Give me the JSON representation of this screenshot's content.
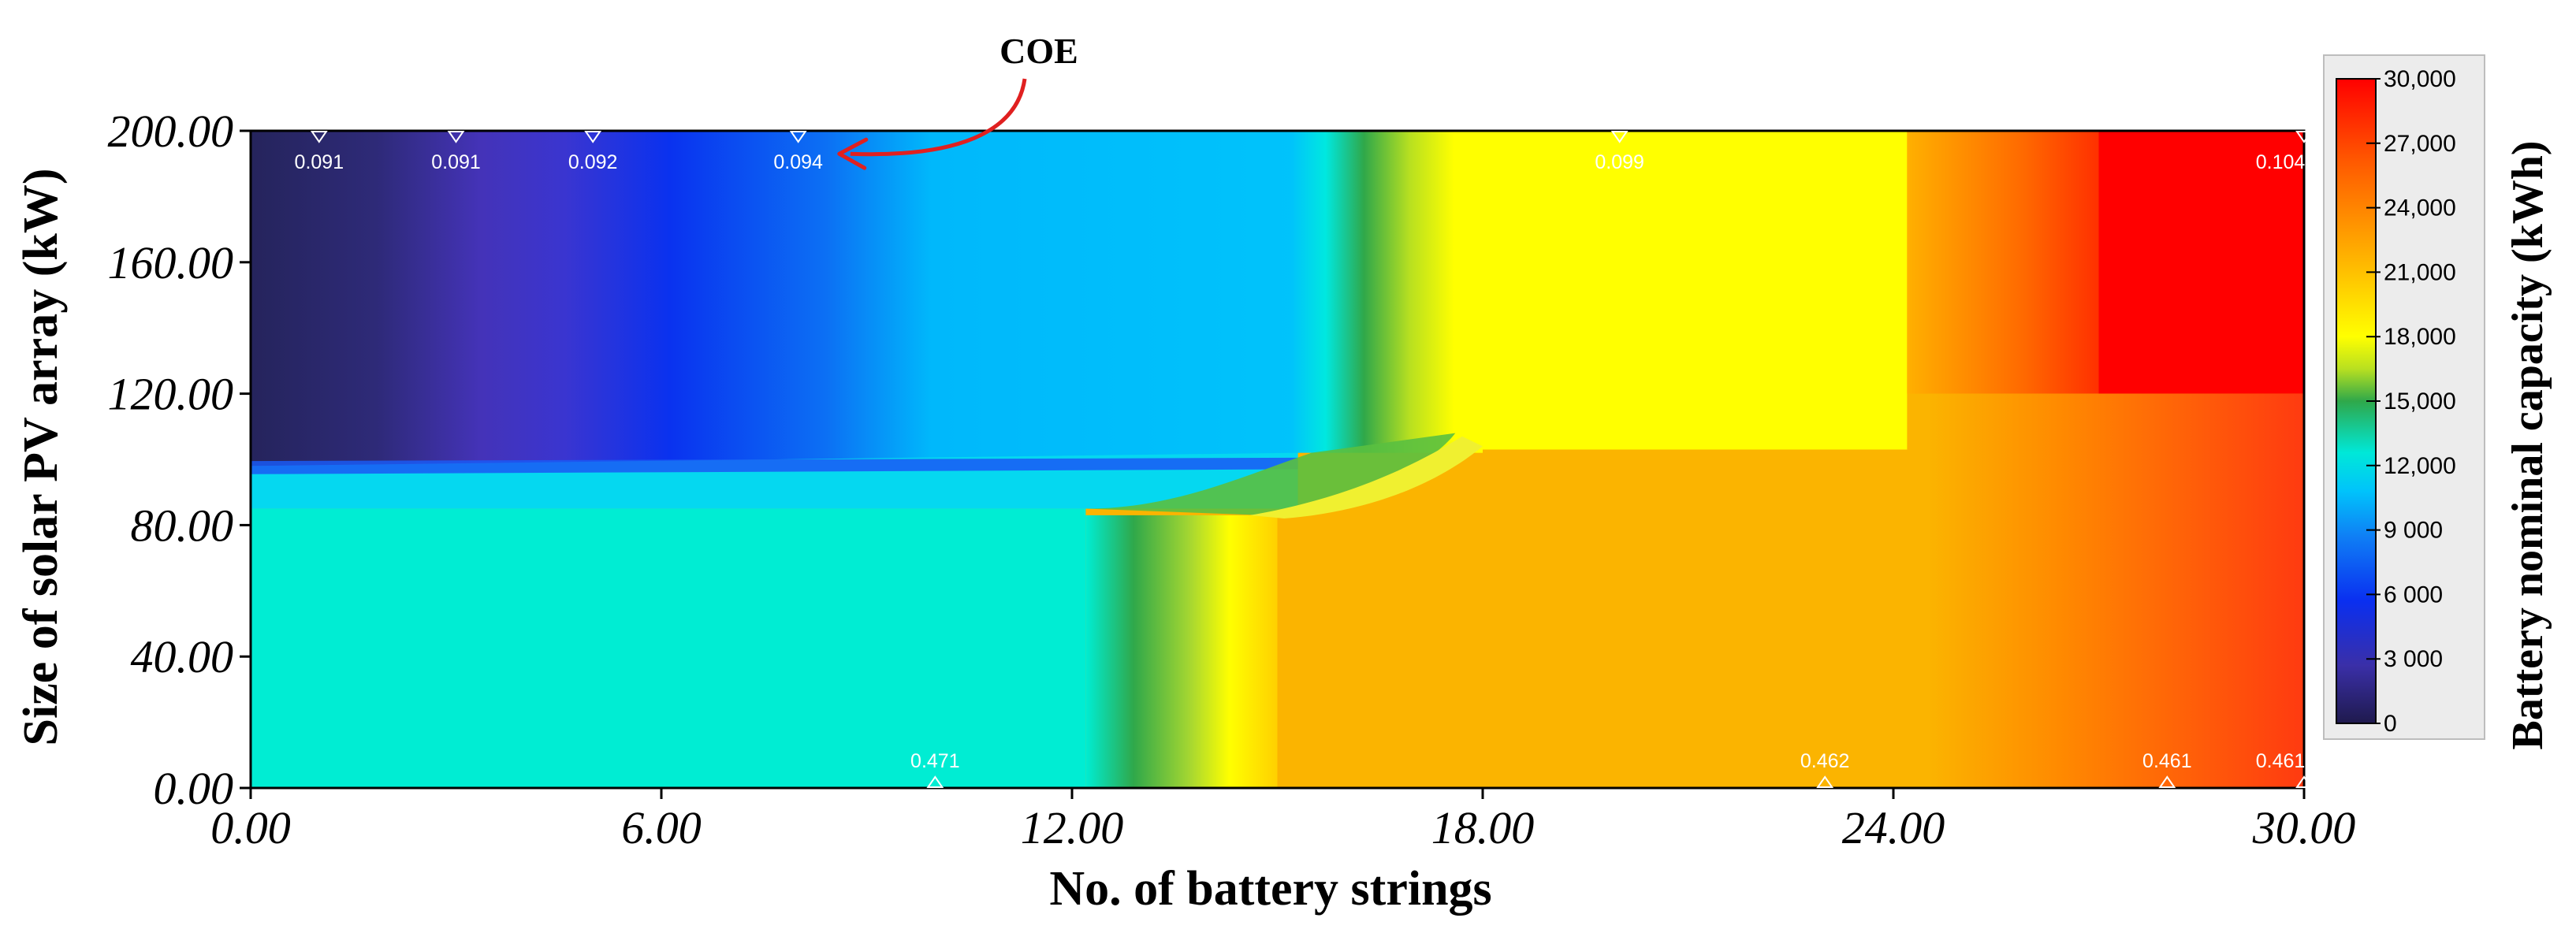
{
  "chart_data": {
    "type": "heatmap",
    "xlabel": "No. of battery strings",
    "ylabel": "Size of solar PV array (kW)",
    "xlim": [
      0,
      30
    ],
    "ylim": [
      0,
      200
    ],
    "x_ticks": [
      "0.00",
      "6.00",
      "12.00",
      "18.00",
      "24.00",
      "30.00"
    ],
    "y_ticks": [
      "0.00",
      "40.00",
      "80.00",
      "120.00",
      "160.00",
      "200.00"
    ],
    "colorbar": {
      "title": "Battery nominal capacity (kWh)",
      "range": [
        0,
        30000
      ],
      "ticks": [
        "0",
        "3 000",
        "6 000",
        "9 000",
        "12,000",
        "15,000",
        "18,000",
        "21,000",
        "24,000",
        "27,000",
        "30,000"
      ],
      "colors": [
        "#1f1a4d",
        "#3a2fa8",
        "#0a2ff0",
        "#0f7ff5",
        "#00c3fb",
        "#00e8d8",
        "#2fa84a",
        "#b8e020",
        "#ffff00",
        "#ffb400",
        "#ff5a00",
        "#ff0000"
      ]
    },
    "regions": [
      {
        "x_range": [
          0,
          1.8
        ],
        "y_range": [
          98,
          200
        ],
        "value": 1500,
        "color": "#26265e"
      },
      {
        "x_range": [
          1.8,
          3.5
        ],
        "y_range": [
          98,
          200
        ],
        "value": 3000,
        "color": "#4535b8"
      },
      {
        "x_range": [
          3.5,
          5.2
        ],
        "y_range": [
          98,
          200
        ],
        "value": 4500,
        "color": "#2a2aec"
      },
      {
        "x_range": [
          5.2,
          8.5
        ],
        "y_range": [
          98,
          200
        ],
        "value": 6000,
        "color": "#0a3ef2"
      },
      {
        "x_range": [
          8.5,
          15.2
        ],
        "y_range": [
          98,
          200
        ],
        "value": 9000,
        "color": "#00c3fb"
      },
      {
        "x_range": [
          0,
          12.2
        ],
        "y_range": [
          0,
          85
        ],
        "value": 11500,
        "color": "#00edd3"
      },
      {
        "x_range": [
          13,
          14.5
        ],
        "y_range": [
          0,
          85
        ],
        "value": 17500,
        "color": "#ffff00"
      },
      {
        "x_range": [
          14.5,
          27
        ],
        "y_range": [
          0,
          120
        ],
        "value": 22000,
        "color": "#fbb400"
      },
      {
        "x_range": [
          17.8,
          24.2
        ],
        "y_range": [
          100,
          200
        ],
        "value": 18000,
        "color": "#ffff00"
      },
      {
        "x_range": [
          27,
          30
        ],
        "y_range": [
          0,
          120
        ],
        "value": 26500,
        "color": "#ff5a10"
      },
      {
        "x_range": [
          27,
          30
        ],
        "y_range": [
          120,
          200
        ],
        "value": 30000,
        "color": "#ff0000"
      }
    ],
    "contour_labels": [
      {
        "x": 1.0,
        "y": 200,
        "label": "0.091"
      },
      {
        "x": 3.0,
        "y": 200,
        "label": "0.091"
      },
      {
        "x": 5.0,
        "y": 200,
        "label": "0.092"
      },
      {
        "x": 8.0,
        "y": 200,
        "label": "0.094"
      },
      {
        "x": 20.0,
        "y": 200,
        "label": "0.099"
      },
      {
        "x": 30.0,
        "y": 200,
        "label": "0.104"
      },
      {
        "x": 10.0,
        "y": 0,
        "label": "0.471"
      },
      {
        "x": 23.0,
        "y": 0,
        "label": "0.462"
      },
      {
        "x": 28.0,
        "y": 0,
        "label": "0.461"
      },
      {
        "x": 30.0,
        "y": 0,
        "label": "0.461"
      }
    ],
    "annotation": {
      "text": "COE",
      "target_x": 8.6,
      "target_y": 193
    }
  }
}
